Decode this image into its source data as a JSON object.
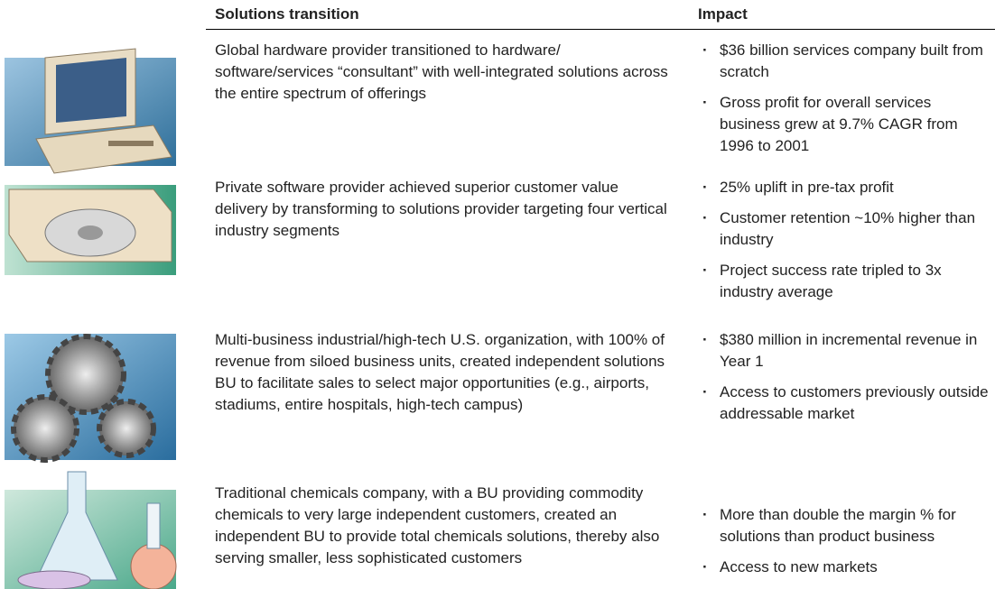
{
  "table": {
    "headers": [
      "Solutions transition",
      "Impact"
    ],
    "rows": [
      {
        "description": "Global hardware provider transitioned to hardware/ software/services “consultant” with well-integrated solutions across the entire spectrum of offerings",
        "impacts": [
          "$36 billion services company built from scratch",
          "Gross profit for overall services business grew at 9.7% CAGR from 1996 to 2001"
        ]
      },
      {
        "description": "Private software provider achieved superior customer value delivery by transforming to solutions provider targeting four vertical industry segments",
        "impacts": [
          "25% uplift in pre-tax profit",
          "Customer retention ~10% higher than industry",
          "Project success rate tripled to 3x industry average"
        ]
      },
      {
        "description": "Multi-business industrial/high-tech U.S. organization, with 100% of revenue from siloed business units, created independent solutions BU to facilitate sales to select major opportunities (e.g., airports, stadiums, entire hospitals, high-tech campus)",
        "impacts": [
          "$380 million in incremental revenue in Year 1",
          "Access to customers previously outside addressable market"
        ]
      },
      {
        "description": "Traditional chemicals company, with a BU providing commodity chemicals to very large independent customers, created an independent BU to provide total chemicals solutions, thereby also serving smaller, less sophisticated customers",
        "impacts": [
          "More than double the margin % for solutions than product business",
          "Access to new markets"
        ]
      }
    ]
  }
}
